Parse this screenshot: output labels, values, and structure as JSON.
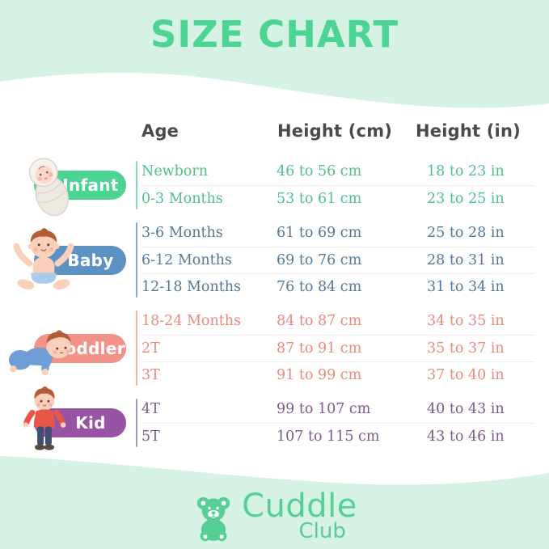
{
  "title": "SIZE CHART",
  "table": {
    "headers": {
      "age": "Age",
      "height_cm": "Height (cm)",
      "height_in": "Height (in)"
    },
    "groups": [
      {
        "id": "infant",
        "label": "Infant",
        "pill_color": "#4cd492",
        "text_color": "#4fc289",
        "rows": [
          {
            "age": "Newborn",
            "cm": "46 to 56 cm",
            "in": "18 to 23 in"
          },
          {
            "age": "0-3 Months",
            "cm": "53 to 61 cm",
            "in": "23 to 25 in"
          }
        ]
      },
      {
        "id": "baby",
        "label": "Baby",
        "pill_color": "#5d91c4",
        "text_color": "#55789a",
        "rows": [
          {
            "age": "3-6 Months",
            "cm": "61 to 69 cm",
            "in": "25 to 28 in"
          },
          {
            "age": "6-12 Months",
            "cm": "69 to 76 cm",
            "in": "28 to 31 in"
          },
          {
            "age": "12-18 Months",
            "cm": "76 to 84 cm",
            "in": "31 to 34 in"
          }
        ]
      },
      {
        "id": "toddler",
        "label": "Toddler",
        "pill_color": "#f39287",
        "text_color": "#e98a7f",
        "rows": [
          {
            "age": "18-24 Months",
            "cm": "84 to 87 cm",
            "in": "34 to 35 in"
          },
          {
            "age": "2T",
            "cm": "87 to 91 cm",
            "in": "35 to 37 in"
          },
          {
            "age": "3T",
            "cm": "91 to 99 cm",
            "in": "37 to 40 in"
          }
        ]
      },
      {
        "id": "kid",
        "label": "Kid",
        "pill_color": "#9953a5",
        "text_color": "#7b5c8c",
        "rows": [
          {
            "age": "4T",
            "cm": "99 to 107 cm",
            "in": "40 to 43 in"
          },
          {
            "age": "5T",
            "cm": "107 to 115 cm",
            "in": "43 to 46 in"
          }
        ]
      }
    ]
  },
  "logo": {
    "name": "Cuddle",
    "sub": "Club"
  },
  "colors": {
    "background_mint": "#d6f2e5",
    "title_green": "#4cd492",
    "header_text": "#4a4a4a",
    "logo_green": "#56cf96"
  }
}
